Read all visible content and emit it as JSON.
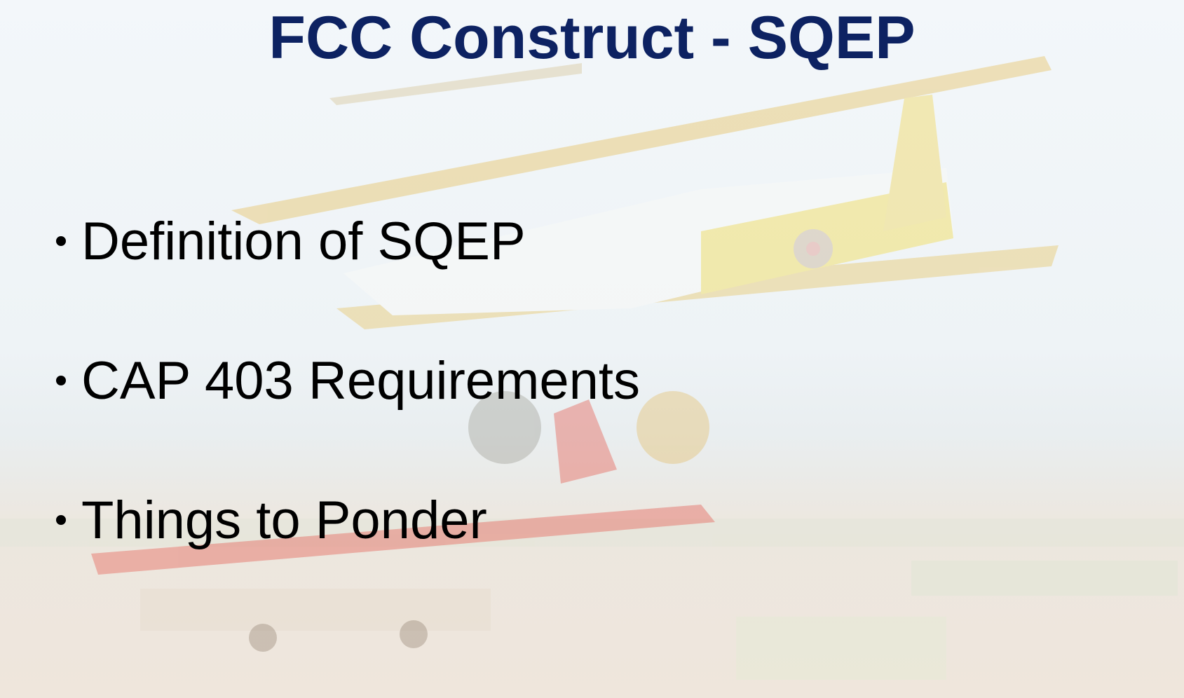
{
  "slide": {
    "title": "FCC Construct - SQEP",
    "bullets": [
      "Definition of SQEP",
      "CAP 403 Requirements",
      "Things to Ponder"
    ]
  }
}
